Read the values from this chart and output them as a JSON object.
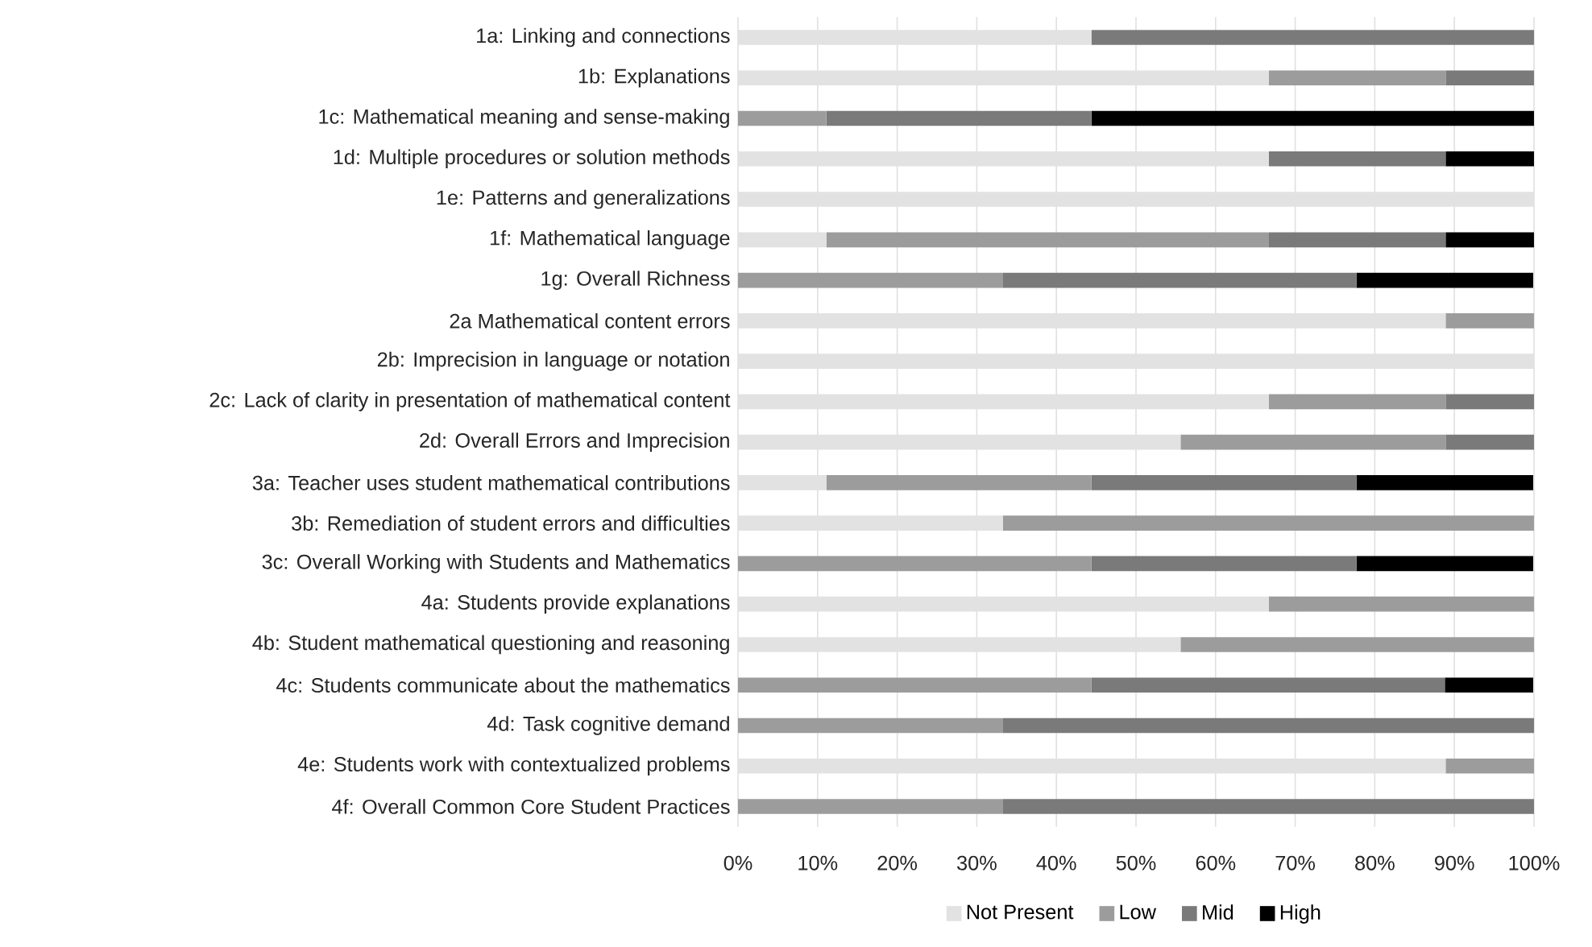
{
  "chart_data": {
    "type": "bar",
    "orientation": "horizontal",
    "stacked": true,
    "grid": "x",
    "legend": "bottom",
    "categories": [
      "1a: Linking and connections",
      "1b: Explanations",
      "1c: Mathematical meaning and sense-making",
      "1d: Multiple procedures or solution methods",
      "1e: Patterns and generalizations",
      "1f: Mathematical language",
      "1g: Overall Richness",
      "2a Mathematical content errors",
      "2b: Imprecision in language or notation",
      "2c: Lack of clarity in presentation of mathematical content",
      "2d: Overall Errors and Imprecision",
      "3a: Teacher uses student mathematical contributions",
      "3b: Remediation of student errors and difficulties",
      "3c: Overall Working with Students and Mathematics",
      "4a: Students provide explanations",
      "4b: Student mathematical questioning and reasoning",
      "4c: Students communicate about the mathematics",
      "4d: Task cognitive demand",
      "4e: Students work with contextualized problems",
      "4f: Overall Common Core Student Practices"
    ],
    "series": [
      {
        "name": "Not Present",
        "color": "#e2e2e2",
        "values": [
          44.4,
          66.7,
          0,
          66.7,
          100,
          11.1,
          0,
          88.9,
          100,
          66.7,
          55.6,
          11.1,
          33.3,
          0,
          66.7,
          55.6,
          0,
          0,
          88.9,
          0
        ]
      },
      {
        "name": "Low",
        "color": "#9c9c9c",
        "values": [
          0,
          22.2,
          11.1,
          0,
          0,
          55.6,
          33.3,
          11.1,
          0,
          22.2,
          33.3,
          33.3,
          66.7,
          44.4,
          33.3,
          44.4,
          44.4,
          33.3,
          11.1,
          33.3
        ]
      },
      {
        "name": "Mid",
        "color": "#7a7a7a",
        "values": [
          55.6,
          11.1,
          33.3,
          22.2,
          0,
          22.2,
          44.4,
          0,
          0,
          11.1,
          11.1,
          33.3,
          0,
          33.3,
          0,
          0,
          44.4,
          66.7,
          0,
          66.7
        ]
      },
      {
        "name": "High",
        "color": "#000000",
        "values": [
          0,
          0,
          55.6,
          11.1,
          0,
          11.1,
          22.2,
          0,
          0,
          0,
          0,
          22.2,
          0,
          22.2,
          0,
          0,
          11.1,
          0,
          0,
          0
        ]
      }
    ],
    "xlim": [
      0,
      100
    ],
    "xticks": [
      {
        "value": 0,
        "label": "0%"
      },
      {
        "value": 10,
        "label": "10%"
      },
      {
        "value": 20,
        "label": "20%"
      },
      {
        "value": 30,
        "label": "30%"
      },
      {
        "value": 40,
        "label": "40%"
      },
      {
        "value": 50,
        "label": "50%"
      },
      {
        "value": 60,
        "label": "60%"
      },
      {
        "value": 70,
        "label": "70%"
      },
      {
        "value": 80,
        "label": "80%"
      },
      {
        "value": 90,
        "label": "90%"
      },
      {
        "value": 100,
        "label": "100%"
      }
    ]
  }
}
